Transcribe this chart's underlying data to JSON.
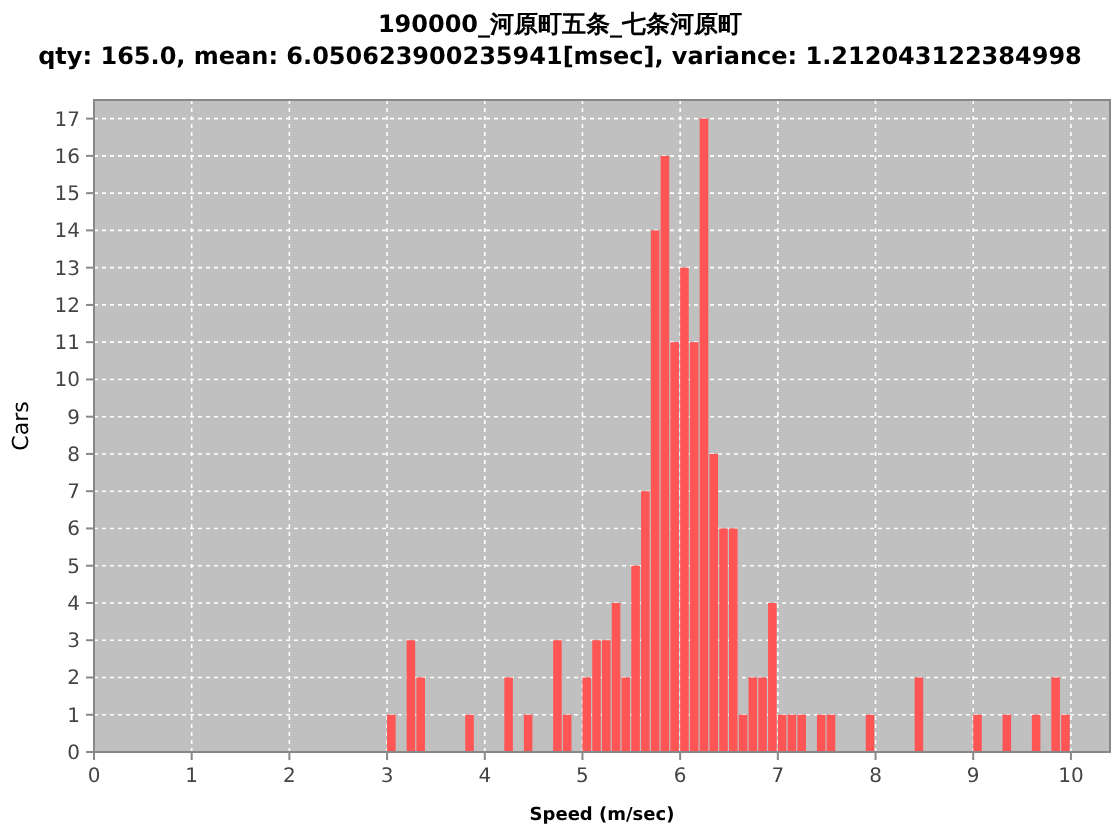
{
  "chart_data": {
    "type": "histogram",
    "title": "190000_河原町五条_七条河原町",
    "subtitle": "qty: 165.0,  mean: 6.050623900235941[msec],  variance: 1.212043122384998",
    "xlabel": "Speed (m/sec)",
    "ylabel": "Cars",
    "color": "#ff5555",
    "bins": [
      3.0,
      3.1,
      3.2,
      3.3,
      3.4,
      3.5,
      3.6,
      3.7,
      3.8,
      3.9,
      4.0,
      4.1,
      4.2,
      4.3,
      4.4,
      4.5,
      4.6,
      4.7,
      4.8,
      4.9,
      5.0,
      5.1,
      5.2,
      5.3,
      5.4,
      5.5,
      5.6,
      5.7,
      5.8,
      5.9,
      6.0,
      6.1,
      6.2,
      6.3,
      6.4,
      6.5,
      6.6,
      6.7,
      6.8,
      6.9,
      7.0,
      7.1,
      7.2,
      7.3,
      7.4,
      7.5,
      7.6,
      7.7,
      7.8,
      7.9,
      8.0,
      8.1,
      8.2,
      8.3,
      8.4,
      8.5,
      8.6,
      8.7,
      8.8,
      8.9,
      9.0,
      9.1,
      9.2,
      9.3,
      9.4,
      9.5,
      9.6,
      9.7,
      9.8,
      9.9,
      10.0
    ],
    "values": [
      1,
      0,
      3,
      2,
      0,
      0,
      0,
      0,
      1,
      0,
      0,
      0,
      2,
      0,
      1,
      0,
      0,
      3,
      1,
      0,
      2,
      3,
      3,
      4,
      2,
      5,
      7,
      14,
      16,
      11,
      13,
      11,
      17,
      8,
      6,
      6,
      1,
      2,
      2,
      4,
      1,
      1,
      1,
      0,
      1,
      1,
      0,
      0,
      0,
      1,
      0,
      0,
      0,
      0,
      2,
      0,
      0,
      0,
      0,
      0,
      1,
      0,
      0,
      1,
      0,
      0,
      1,
      0,
      2,
      1
    ],
    "xlim": [
      0,
      10.4
    ],
    "xticks": [
      0,
      1,
      2,
      3,
      4,
      5,
      6,
      7,
      8,
      9,
      10
    ],
    "ylim": [
      0,
      17.5
    ],
    "yticks": [
      0,
      1,
      2,
      3,
      4,
      5,
      6,
      7,
      8,
      9,
      10,
      11,
      12,
      13,
      14,
      15,
      16,
      17
    ],
    "grid": true
  }
}
